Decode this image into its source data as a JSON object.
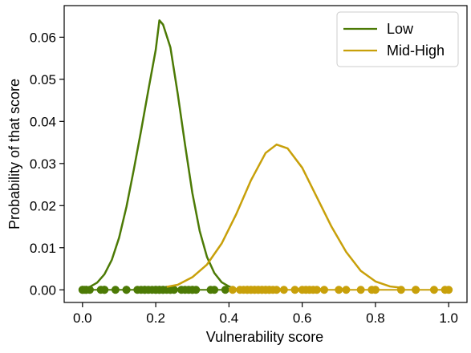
{
  "chart_data": {
    "type": "line",
    "title": "",
    "xlabel": "Vulnerability score",
    "ylabel": "Probability of that score",
    "xlim": [
      -0.05,
      1.05
    ],
    "ylim": [
      -0.003,
      0.0675
    ],
    "x_ticks": [
      {
        "value": 0.0,
        "label": "0.0"
      },
      {
        "value": 0.2,
        "label": "0.2"
      },
      {
        "value": 0.4,
        "label": "0.4"
      },
      {
        "value": 0.6,
        "label": "0.6"
      },
      {
        "value": 0.8,
        "label": "0.8"
      },
      {
        "value": 1.0,
        "label": "1.0"
      }
    ],
    "y_ticks": [
      {
        "value": 0.0,
        "label": "0.00"
      },
      {
        "value": 0.01,
        "label": "0.01"
      },
      {
        "value": 0.02,
        "label": "0.02"
      },
      {
        "value": 0.03,
        "label": "0.03"
      },
      {
        "value": 0.04,
        "label": "0.04"
      },
      {
        "value": 0.05,
        "label": "0.05"
      },
      {
        "value": 0.06,
        "label": "0.06"
      }
    ],
    "grid": false,
    "legend_position": "top-right",
    "series": [
      {
        "name": "Low",
        "color": "#4c7a05",
        "x": [
          0.02,
          0.04,
          0.06,
          0.08,
          0.1,
          0.12,
          0.14,
          0.16,
          0.18,
          0.2,
          0.21,
          0.22,
          0.24,
          0.26,
          0.28,
          0.3,
          0.32,
          0.34,
          0.36,
          0.38,
          0.4,
          0.41
        ],
        "y": [
          0.0007,
          0.0017,
          0.0037,
          0.0071,
          0.0124,
          0.0197,
          0.0285,
          0.0378,
          0.0475,
          0.057,
          0.064,
          0.063,
          0.0576,
          0.0466,
          0.0345,
          0.023,
          0.014,
          0.0078,
          0.004,
          0.0018,
          0.0008,
          0.0005
        ],
        "points": [
          0.0,
          0.0,
          0.005,
          0.01,
          0.01,
          0.02,
          0.05,
          0.06,
          0.06,
          0.09,
          0.12,
          0.12,
          0.15,
          0.16,
          0.17,
          0.17,
          0.18,
          0.19,
          0.2,
          0.2,
          0.21,
          0.21,
          0.22,
          0.22,
          0.23,
          0.24,
          0.24,
          0.25,
          0.27,
          0.28,
          0.29,
          0.3,
          0.3,
          0.31,
          0.35,
          0.36,
          0.39
        ]
      },
      {
        "name": "Mid-High",
        "color": "#c8a00a",
        "x": [
          0.23,
          0.26,
          0.3,
          0.34,
          0.38,
          0.42,
          0.46,
          0.5,
          0.53,
          0.56,
          0.6,
          0.64,
          0.68,
          0.72,
          0.76,
          0.8,
          0.84,
          0.87
        ],
        "y": [
          0.0007,
          0.0012,
          0.003,
          0.006,
          0.011,
          0.018,
          0.026,
          0.0325,
          0.0345,
          0.0336,
          0.029,
          0.022,
          0.015,
          0.009,
          0.0045,
          0.002,
          0.0008,
          0.0005
        ],
        "points": [
          0.41,
          0.43,
          0.44,
          0.45,
          0.45,
          0.46,
          0.46,
          0.47,
          0.47,
          0.48,
          0.48,
          0.49,
          0.49,
          0.5,
          0.5,
          0.51,
          0.51,
          0.52,
          0.53,
          0.55,
          0.58,
          0.6,
          0.61,
          0.62,
          0.63,
          0.64,
          0.66,
          0.7,
          0.72,
          0.76,
          0.79,
          0.8,
          0.87,
          0.91,
          0.91,
          0.96,
          0.99,
          1.0
        ]
      }
    ]
  }
}
